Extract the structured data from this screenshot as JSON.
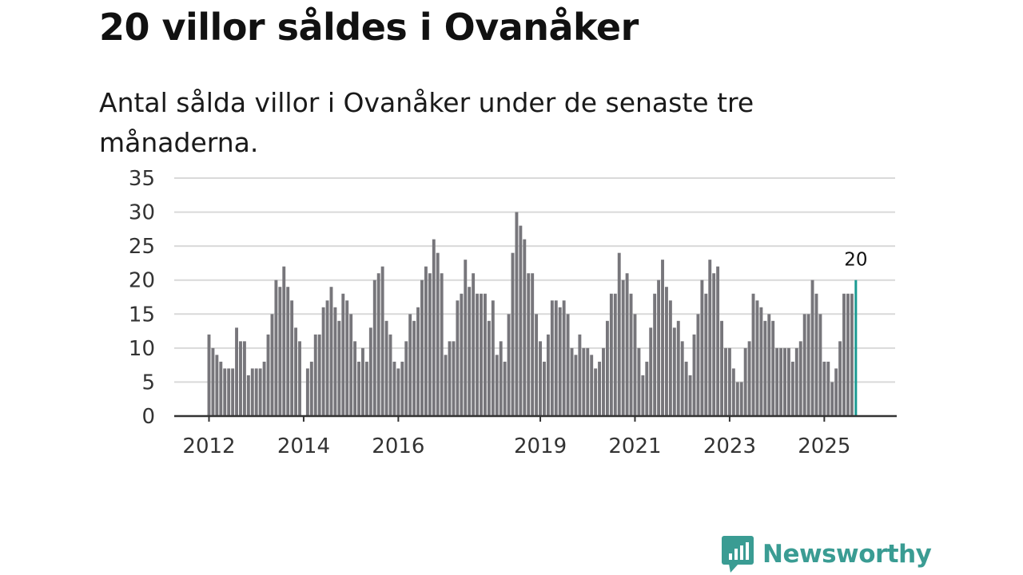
{
  "header": {
    "title": "20 villor såldes i Ovanåker",
    "subtitle": "Antal sålda villor i Ovanåker under de senaste tre månaderna."
  },
  "brand": {
    "name": "Newsworthy"
  },
  "colors": {
    "bar": "#77767b",
    "highlight": "#1a9a92",
    "grid": "#d9d9d9",
    "axis": "#333333",
    "brand": "#3a9c93"
  },
  "chart_data": {
    "type": "bar",
    "title": "20 villor såldes i Ovanåker",
    "subtitle": "Antal sålda villor i Ovanåker under de senaste tre månaderna.",
    "xlabel": "",
    "ylabel": "",
    "ylim": [
      0,
      35
    ],
    "yticks": [
      0,
      5,
      10,
      15,
      20,
      25,
      30,
      35
    ],
    "xtick_labels": [
      {
        "label": "2012",
        "index": 0
      },
      {
        "label": "2014",
        "index": 24
      },
      {
        "label": "2016",
        "index": 48
      },
      {
        "label": "2019",
        "index": 84
      },
      {
        "label": "2021",
        "index": 108
      },
      {
        "label": "2023",
        "index": 132
      },
      {
        "label": "2025",
        "index": 156
      }
    ],
    "highlight_label": "20",
    "values": [
      12,
      10,
      9,
      8,
      7,
      7,
      7,
      13,
      11,
      11,
      6,
      7,
      7,
      7,
      8,
      12,
      15,
      20,
      19,
      22,
      19,
      17,
      13,
      11,
      0,
      7,
      8,
      12,
      12,
      16,
      17,
      19,
      16,
      14,
      18,
      17,
      15,
      11,
      8,
      10,
      8,
      13,
      20,
      21,
      22,
      14,
      12,
      8,
      7,
      8,
      11,
      15,
      14,
      16,
      20,
      22,
      21,
      26,
      24,
      21,
      9,
      11,
      11,
      17,
      18,
      23,
      19,
      21,
      18,
      18,
      18,
      14,
      17,
      9,
      11,
      8,
      15,
      24,
      30,
      28,
      26,
      21,
      21,
      15,
      11,
      8,
      12,
      17,
      17,
      16,
      17,
      15,
      10,
      9,
      12,
      10,
      10,
      9,
      7,
      8,
      10,
      14,
      18,
      18,
      24,
      20,
      21,
      18,
      15,
      10,
      6,
      8,
      13,
      18,
      20,
      23,
      19,
      17,
      13,
      14,
      11,
      8,
      6,
      12,
      15,
      20,
      18,
      23,
      21,
      22,
      14,
      10,
      10,
      7,
      5,
      5,
      10,
      11,
      18,
      17,
      16,
      14,
      15,
      14,
      10,
      10,
      10,
      10,
      8,
      10,
      11,
      15,
      15,
      20,
      18,
      15,
      8,
      8,
      5,
      7,
      11,
      18,
      18,
      18,
      20
    ]
  }
}
